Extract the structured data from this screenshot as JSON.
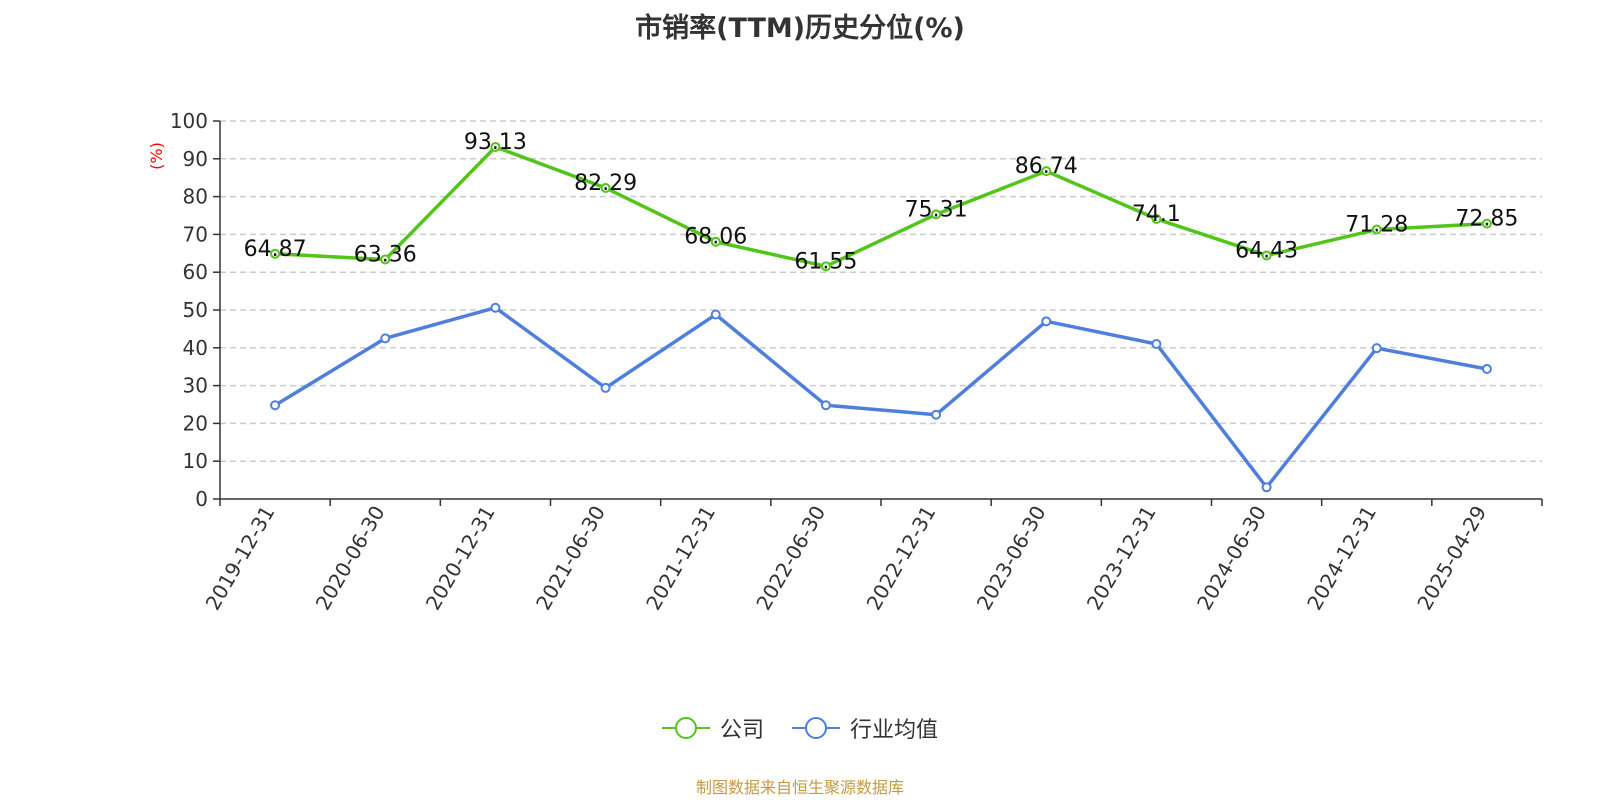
{
  "chart_data": {
    "type": "line",
    "title": "市销率(TTM)历史分位(%)",
    "ylabel": "(%)",
    "xlabel": "",
    "ylim": [
      0,
      100
    ],
    "yticks": [
      0,
      10,
      20,
      30,
      40,
      50,
      60,
      70,
      80,
      90,
      100
    ],
    "grid": true,
    "legend_position": "bottom-center",
    "categories": [
      "2019-12-31",
      "2020-06-30",
      "2020-12-31",
      "2021-06-30",
      "2021-12-31",
      "2022-06-30",
      "2022-12-31",
      "2023-06-30",
      "2023-12-31",
      "2024-06-30",
      "2024-12-31",
      "2025-04-29"
    ],
    "series": [
      {
        "name": "公司",
        "color": "#52c41a",
        "show_labels": true,
        "values": [
          64.87,
          63.36,
          93.13,
          82.29,
          68.06,
          61.55,
          75.31,
          86.74,
          74.1,
          64.43,
          71.28,
          72.85
        ]
      },
      {
        "name": "行业均值",
        "color": "#4e7fdc",
        "show_labels": false,
        "values": [
          24.8,
          42.5,
          50.6,
          29.4,
          48.8,
          24.8,
          22.3,
          47.0,
          41.0,
          3.1,
          39.9,
          34.4
        ]
      }
    ]
  },
  "source": "制图数据来自恒生聚源数据库",
  "colors": {
    "axis": "#333333",
    "grid": "#cccccc",
    "ylabel": "#ff0000",
    "source": "#c59a3f"
  }
}
